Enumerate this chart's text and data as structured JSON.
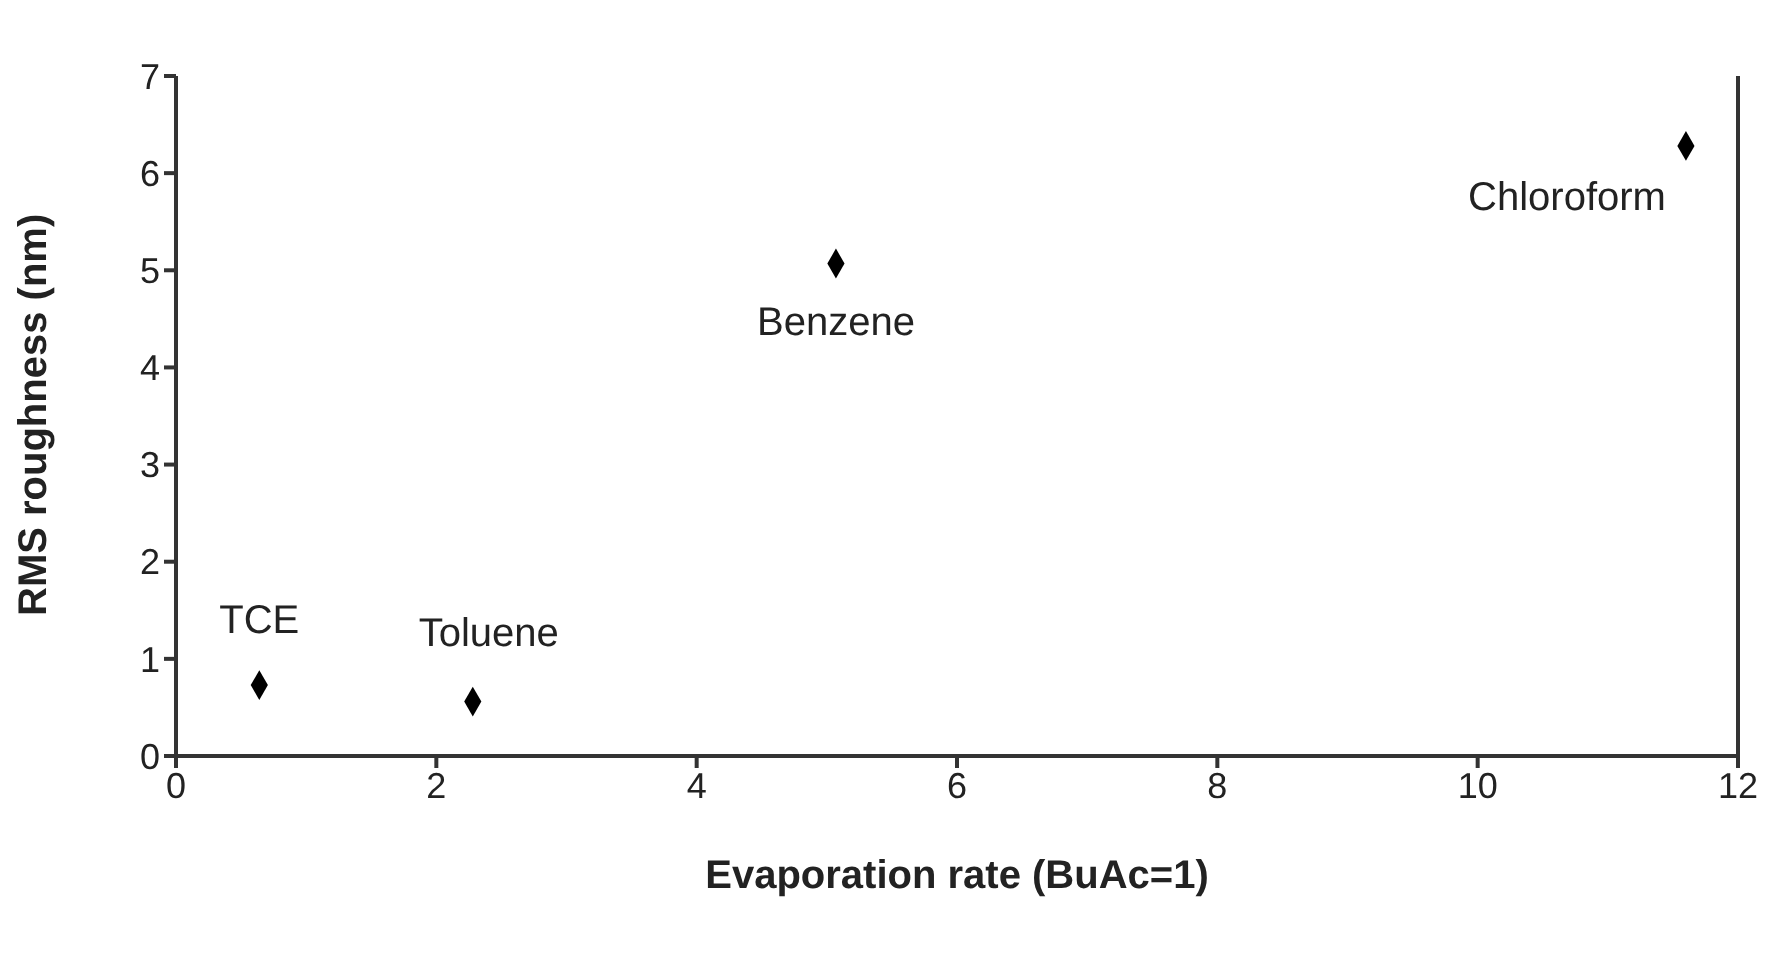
{
  "chart_data": {
    "type": "scatter",
    "xlabel": "Evaporation rate (BuAc=1)",
    "ylabel": "RMS roughness (nm)",
    "x": [
      0.64,
      2.28,
      5.07,
      11.6
    ],
    "series": [
      {
        "color": "#000000",
        "values": [
          0.73,
          0.56,
          5.07,
          6.28
        ]
      }
    ],
    "xlim": [
      0,
      12
    ],
    "xticks": [
      0,
      2,
      4,
      6,
      8,
      10,
      12
    ],
    "ylim": [
      0,
      7
    ],
    "yticks": [
      0,
      1,
      2,
      3,
      4,
      5,
      6,
      7
    ],
    "marker": "diamond",
    "grid": false,
    "legend": false,
    "annotations": [
      {
        "text": "TCE",
        "x": 0.64,
        "y": 0.73
      },
      {
        "text": "Toluene",
        "x": 2.28,
        "y": 0.56
      },
      {
        "text": "Benzene",
        "x": 5.07,
        "y": 5.07
      },
      {
        "text": "Chloroform",
        "x": 11.6,
        "y": 6.28
      }
    ]
  }
}
